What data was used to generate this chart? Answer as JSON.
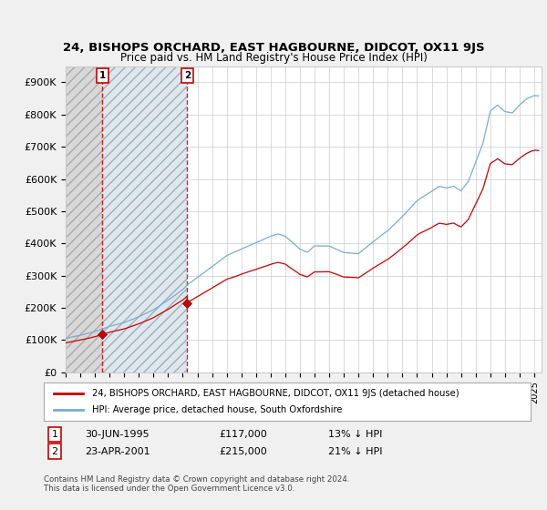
{
  "title": "24, BISHOPS ORCHARD, EAST HAGBOURNE, DIDCOT, OX11 9JS",
  "subtitle": "Price paid vs. HM Land Registry's House Price Index (HPI)",
  "hpi_label": "HPI: Average price, detached house, South Oxfordshire",
  "price_label": "24, BISHOPS ORCHARD, EAST HAGBOURNE, DIDCOT, OX11 9JS (detached house)",
  "copyright": "Contains HM Land Registry data © Crown copyright and database right 2024.\nThis data is licensed under the Open Government Licence v3.0.",
  "sales": [
    {
      "date_num": 1995.5,
      "price": 117000,
      "label": "1",
      "date_str": "30-JUN-1995",
      "pct": "13% ↓ HPI"
    },
    {
      "date_num": 2001.3,
      "price": 215000,
      "label": "2",
      "date_str": "23-APR-2001",
      "pct": "21% ↓ HPI"
    }
  ],
  "vline_dates": [
    1995.5,
    2001.3
  ],
  "ylim": [
    0,
    950000
  ],
  "xlim": [
    1993,
    2025.5
  ],
  "yticks": [
    0,
    100000,
    200000,
    300000,
    400000,
    500000,
    600000,
    700000,
    800000,
    900000
  ],
  "ytick_labels": [
    "£0",
    "£100K",
    "£200K",
    "£300K",
    "£400K",
    "£500K",
    "£600K",
    "£700K",
    "£800K",
    "£900K"
  ],
  "xticks": [
    1993,
    1994,
    1995,
    1996,
    1997,
    1998,
    1999,
    2000,
    2001,
    2002,
    2003,
    2004,
    2005,
    2006,
    2007,
    2008,
    2009,
    2010,
    2011,
    2012,
    2013,
    2014,
    2015,
    2016,
    2017,
    2018,
    2019,
    2020,
    2021,
    2022,
    2023,
    2024,
    2025
  ],
  "hpi_color": "#7aadcf",
  "price_color": "#cc0000",
  "sale_marker_color": "#cc0000",
  "vline_color": "#cc0000",
  "background_color": "#f0f0f0",
  "plot_bg_color": "#ffffff",
  "hatch_left_color": "#d8d8d8",
  "hatch_mid_color": "#dce8f0"
}
